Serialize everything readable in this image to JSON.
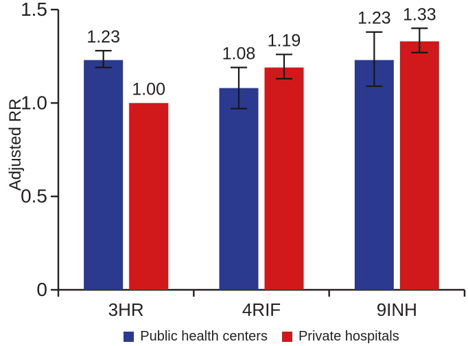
{
  "chart_data": {
    "type": "bar",
    "title": "",
    "xlabel": "",
    "ylabel": "Adjusted RR",
    "ylim": [
      0,
      1.5
    ],
    "yticks": [
      0,
      0.5,
      1.0,
      1.5
    ],
    "ytick_labels": [
      "0",
      "0.5",
      "1.0",
      "1.5"
    ],
    "categories": [
      "3HR",
      "4RIF",
      "9INH"
    ],
    "series": [
      {
        "name": "Public health centers",
        "color": "#2b3a8e",
        "values": [
          1.23,
          1.08,
          1.23
        ],
        "value_labels": [
          "1.23",
          "1.08",
          "1.23"
        ],
        "error_low": [
          1.19,
          0.97,
          1.09
        ],
        "error_high": [
          1.28,
          1.19,
          1.38
        ]
      },
      {
        "name": "Private hospitals",
        "color": "#d1191c",
        "values": [
          1.0,
          1.19,
          1.33
        ],
        "value_labels": [
          "1.00",
          "1.19",
          "1.33"
        ],
        "error_low": [
          null,
          1.13,
          1.27
        ],
        "error_high": [
          null,
          1.26,
          1.4
        ]
      }
    ],
    "legend_position": "bottom",
    "grid": false,
    "axis_color": "#242021",
    "text_color": "#242021",
    "error_bar_color": "#1a1718"
  }
}
